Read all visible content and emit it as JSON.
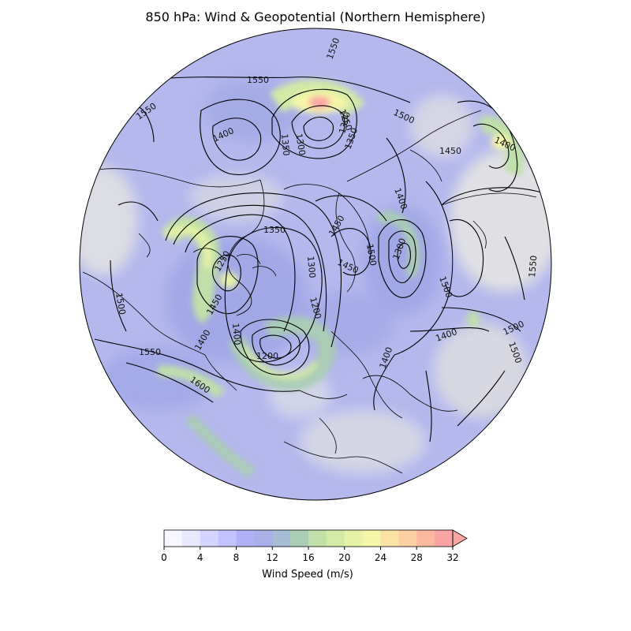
{
  "figure": {
    "title": "850 hPa: Wind & Geopotential (Northern Hemisphere)"
  },
  "colorbar": {
    "label": "Wind Speed (m/s)",
    "ticks": [
      "0",
      "4",
      "8",
      "12",
      "16",
      "20",
      "24",
      "28",
      "32"
    ],
    "extend": "max",
    "colors": [
      "#f7f7ff",
      "#e8e8ff",
      "#d4d4ff",
      "#c2c2ff",
      "#b0b0f8",
      "#a8b0e8",
      "#a6bdd6",
      "#a9cdb5",
      "#bfe0a8",
      "#d2eaa6",
      "#e6f2a6",
      "#f6f6a8",
      "#fbe3a6",
      "#fdd0a4",
      "#fdb8a2",
      "#fba4a4"
    ]
  },
  "contour_labels": [
    "1550",
    "1550",
    "1550",
    "1500",
    "1450",
    "1400",
    "1400",
    "1300",
    "1350",
    "1250",
    "1350",
    "1300",
    "1400",
    "1400",
    "1450",
    "1450",
    "1500",
    "1350",
    "1300",
    "1500",
    "1450",
    "1300",
    "1250",
    "1200",
    "1200",
    "1550",
    "1600",
    "1500",
    "1400",
    "1400",
    "1500",
    "1500",
    "1550",
    "1400"
  ],
  "colors": {
    "coastline": "#000000",
    "contour": "#000000",
    "land_grey": "#d9d9df",
    "base_blue": "#b4b8ec"
  }
}
